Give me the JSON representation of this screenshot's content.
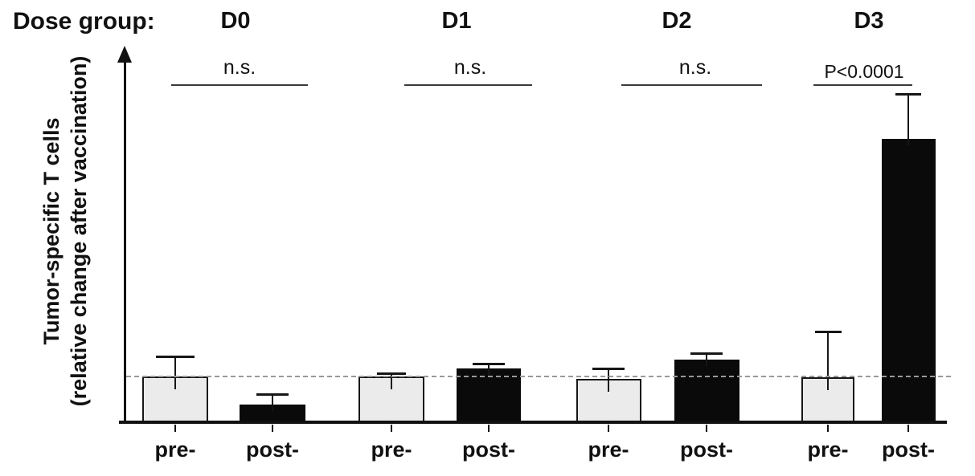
{
  "header": {
    "label": "Dose group:"
  },
  "y_axis": {
    "line1": "Tumor-specific T cells",
    "line2": "(relative change after vaccination)"
  },
  "chart_data": {
    "type": "bar",
    "title": "",
    "xlabel": "",
    "ylabel": "Tumor-specific T cells (relative change after vaccination)",
    "y_ticks_shown": false,
    "dashed_reference_value": 1.0,
    "ylim": [
      0,
      8
    ],
    "bar_category_labels": [
      "pre-",
      "post-"
    ],
    "groups": [
      {
        "name": "D0",
        "significance": "n.s.",
        "bars": [
          {
            "label": "pre-",
            "series": "pre",
            "value": 1.0,
            "error_plus": 0.43
          },
          {
            "label": "post-",
            "series": "post",
            "value": 0.4,
            "error_plus": 0.22
          }
        ]
      },
      {
        "name": "D1",
        "significance": "n.s.",
        "bars": [
          {
            "label": "pre-",
            "series": "pre",
            "value": 1.0,
            "error_plus": 0.07
          },
          {
            "label": "post-",
            "series": "post",
            "value": 1.17,
            "error_plus": 0.1
          }
        ]
      },
      {
        "name": "D2",
        "significance": "n.s.",
        "bars": [
          {
            "label": "pre-",
            "series": "pre",
            "value": 0.95,
            "error_plus": 0.22
          },
          {
            "label": "post-",
            "series": "post",
            "value": 1.36,
            "error_plus": 0.14
          }
        ]
      },
      {
        "name": "D3",
        "significance": "P<0.0001",
        "bars": [
          {
            "label": "pre-",
            "series": "pre",
            "value": 0.98,
            "error_plus": 0.98
          },
          {
            "label": "post-",
            "series": "post",
            "value": 6.1,
            "error_plus": 0.97
          }
        ]
      }
    ],
    "colors": {
      "pre_fill": "#ebebeb",
      "post_fill": "#0a0a0a",
      "bar_border": "#161616",
      "dashed_line": "#999999",
      "axis": "#111111"
    },
    "legend": "light bars = pre-, black bars = post-"
  }
}
